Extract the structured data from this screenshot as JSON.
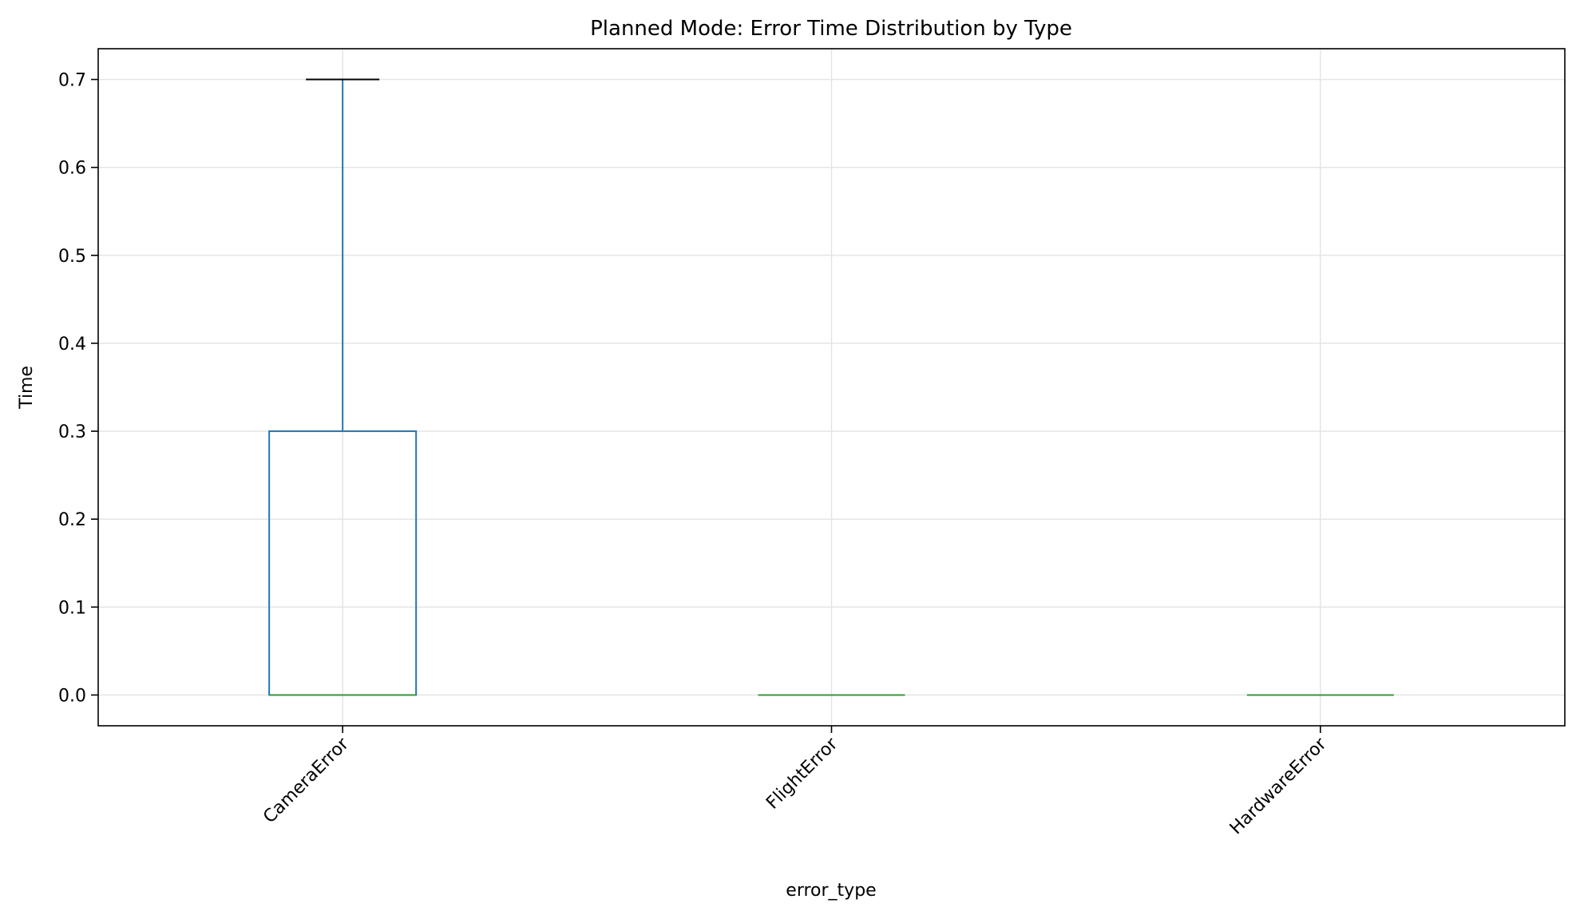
{
  "chart_data": {
    "type": "box",
    "title": "Planned Mode: Error Time Distribution by Type",
    "xlabel": "error_type",
    "ylabel": "Time",
    "ylim": [
      -0.035,
      0.735
    ],
    "yticks": [
      0.0,
      0.1,
      0.2,
      0.3,
      0.4,
      0.5,
      0.6,
      0.7
    ],
    "ytick_labels": [
      "0.0",
      "0.1",
      "0.2",
      "0.3",
      "0.4",
      "0.5",
      "0.6",
      "0.7"
    ],
    "grid": true,
    "xtick_rotation": 45,
    "categories": [
      "CameraError",
      "FlightError",
      "HardwareError"
    ],
    "boxes": [
      {
        "category": "CameraError",
        "whisker_low": 0.0,
        "q1": 0.0,
        "median": 0.0,
        "q3": 0.3,
        "whisker_high": 0.7
      },
      {
        "category": "FlightError",
        "whisker_low": 0.0,
        "q1": 0.0,
        "median": 0.0,
        "q3": 0.0,
        "whisker_high": 0.0
      },
      {
        "category": "HardwareError",
        "whisker_low": 0.0,
        "q1": 0.0,
        "median": 0.0,
        "q3": 0.0,
        "whisker_high": 0.0
      }
    ],
    "colors": {
      "box": "#1f77b4",
      "median": "#2ca02c",
      "cap": "#000000",
      "grid": "#e3e3e3",
      "axis": "#000000"
    }
  }
}
